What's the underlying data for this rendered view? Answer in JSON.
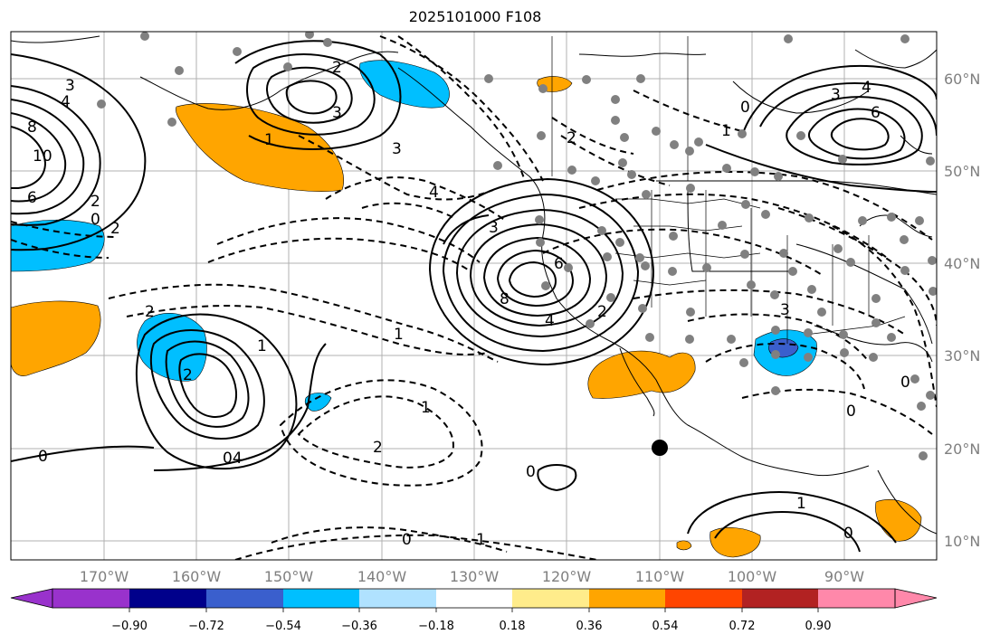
{
  "title": "2025101000 F108",
  "colors": {
    "land_border": "#000000",
    "station_dot": "#808080",
    "grid": "#b0b0b0",
    "pos_fill": "#ffa500",
    "neg_fill": "#00bfff",
    "strong_neg_fill": "#3a5fcd"
  },
  "lon_labels": [
    "170°W",
    "160°W",
    "150°W",
    "140°W",
    "130°W",
    "120°W",
    "110°W",
    "100°W",
    "90°W"
  ],
  "lat_labels": [
    "60°N",
    "50°N",
    "40°N",
    "30°N",
    "20°N",
    "10°N"
  ],
  "contour_labels": {
    "l3a": "3",
    "l4a": "4",
    "l8a": "8",
    "l10a": "10",
    "l6a": "6",
    "l2a": "2",
    "l0a": "0",
    "l2b": "2",
    "l2c": "2",
    "l3b": "3",
    "l1a": "1",
    "l3c": "3",
    "l4b": "4",
    "l2d": "2",
    "l1b": "1",
    "l0b": "0",
    "l3d": "3",
    "l4c": "4",
    "l6b": "6",
    "l3e": "3",
    "l8b": "8",
    "l6c": "6",
    "l4d": "4",
    "l2e": "2",
    "l1c": "1",
    "l3f": "3",
    "l0c": "0",
    "l0d": "0",
    "l2f": "2",
    "l2g": "2",
    "l1d": "1",
    "l0e": "0",
    "l4e": "04",
    "l1e": "1",
    "l2h": "2",
    "l0f": "0",
    "l0g": "0",
    "l1f": "1",
    "l1g": "1",
    "l0h": "0"
  },
  "colorbar": {
    "ticks": [
      "−0.90",
      "−0.72",
      "−0.54",
      "−0.36",
      "−0.18",
      "0.18",
      "0.36",
      "0.54",
      "0.72",
      "0.90"
    ],
    "colors": [
      "#9932cc",
      "#00008b",
      "#3a5fcd",
      "#00bfff",
      "#b0e2ff",
      "#ffffff",
      "#ffec8b",
      "#ffa500",
      "#ff4500",
      "#b22222",
      "#ff88aa"
    ]
  }
}
